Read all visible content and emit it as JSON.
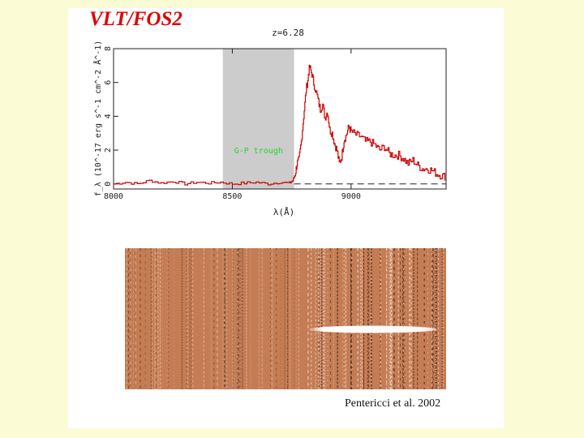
{
  "title": "VLT/FOS2",
  "citation": "Pentericci et al. 2002",
  "chart_data": {
    "type": "line",
    "annotation_z": "z=6.28",
    "xlabel": "λ(Å)",
    "ylabel": "f_λ (10^-17 erg s^-1 cm^-2 Å^-1)",
    "xlim": [
      8000,
      9400
    ],
    "ylim": [
      -0.3,
      8
    ],
    "xticks": [
      8000,
      8500,
      9000
    ],
    "xtick_labels": [
      "8000",
      "8500",
      "9000"
    ],
    "yticks": [
      0,
      2,
      4,
      6,
      8
    ],
    "ytick_labels": [
      "0",
      "2",
      "4",
      "6",
      "8"
    ],
    "shaded_region": {
      "x": [
        8460,
        8760
      ],
      "label": "G-P trough",
      "color": "#cccccc"
    },
    "zero_line": {
      "y": 0,
      "x_start": 8760,
      "style": "dashed"
    },
    "series": [
      {
        "color": "#cc0000",
        "x": [
          8000,
          8050,
          8100,
          8150,
          8200,
          8250,
          8300,
          8350,
          8400,
          8450,
          8500,
          8550,
          8600,
          8650,
          8700,
          8740,
          8755,
          8765,
          8772,
          8780,
          8790,
          8800,
          8810,
          8820,
          8825,
          8835,
          8845,
          8860,
          8870,
          8880,
          8890,
          8900,
          8910,
          8920,
          8930,
          8940,
          8950,
          8960,
          8970,
          8980,
          8990,
          9000,
          9020,
          9040,
          9060,
          9080,
          9100,
          9120,
          9140,
          9160,
          9180,
          9200,
          9220,
          9240,
          9260,
          9280,
          9300,
          9320,
          9340,
          9360,
          9380,
          9400
        ],
        "y": [
          0.0,
          0.1,
          0.0,
          0.2,
          0.05,
          0.15,
          0.0,
          0.1,
          0.05,
          0.1,
          0.0,
          0.05,
          0.1,
          0.0,
          0.1,
          0.05,
          0.2,
          0.6,
          1.2,
          1.4,
          2.5,
          4.0,
          5.5,
          6.4,
          6.9,
          6.5,
          5.8,
          5.0,
          4.4,
          4.7,
          3.9,
          4.3,
          3.2,
          3.0,
          2.4,
          2.0,
          1.2,
          1.6,
          2.6,
          2.9,
          3.4,
          3.1,
          2.9,
          2.8,
          2.5,
          2.5,
          2.3,
          2.0,
          2.2,
          1.8,
          1.7,
          1.7,
          1.5,
          1.2,
          1.4,
          1.1,
          0.9,
          0.9,
          0.8,
          0.6,
          0.5,
          0.4
        ]
      }
    ]
  }
}
